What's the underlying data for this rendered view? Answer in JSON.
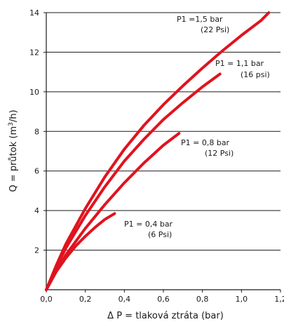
{
  "chart_data": {
    "type": "line",
    "xlim": [
      0,
      1.2
    ],
    "ylim": [
      0,
      14
    ],
    "grid": "horizontal",
    "x_tick_labels": [
      "0,0",
      "0,2",
      "0,4",
      "0,6",
      "0,8",
      "1,0",
      "1,2"
    ],
    "y_tick_labels": [
      "2",
      "4",
      "6",
      "8",
      "10",
      "12",
      "14"
    ],
    "xlabel": "Δ P = tlaková ztráta (bar)",
    "ylabel": {
      "prefix": "Q = průtok (m",
      "sup": "3",
      "suffix": "/h)"
    },
    "line_color": "#e0131e",
    "series": [
      {
        "name": "P1 = 0,4 bar (6 Psi)",
        "line1": "P1 = 0,4 bar",
        "line2": "(6 Psi)",
        "x": [
          0,
          0.05,
          0.1,
          0.15,
          0.2,
          0.25,
          0.3,
          0.35
        ],
        "y": [
          0,
          0.9,
          1.6,
          2.2,
          2.7,
          3.15,
          3.55,
          3.85
        ]
      },
      {
        "name": "P1 = 0,8 bar (12 Psi)",
        "line1": "P1 = 0,8 bar",
        "line2": "(12 Psi)",
        "x": [
          0,
          0.05,
          0.1,
          0.2,
          0.3,
          0.4,
          0.5,
          0.6,
          0.68
        ],
        "y": [
          0,
          0.9,
          1.75,
          3.1,
          4.3,
          5.4,
          6.4,
          7.3,
          7.9
        ]
      },
      {
        "name": "P1 = 1,1 bar (16 psi)",
        "line1": "P1 = 1,1 bar",
        "line2": "(16 psi)",
        "x": [
          0,
          0.05,
          0.1,
          0.2,
          0.3,
          0.4,
          0.5,
          0.6,
          0.7,
          0.8,
          0.89
        ],
        "y": [
          0,
          1.1,
          2.1,
          3.75,
          5.2,
          6.5,
          7.6,
          8.6,
          9.45,
          10.25,
          10.9
        ]
      },
      {
        "name": "P1 =1,5 bar (22 Psi)",
        "line1": "P1 =1,5 bar",
        "line2": "(22 Psi)",
        "x": [
          0,
          0.05,
          0.1,
          0.2,
          0.3,
          0.4,
          0.5,
          0.6,
          0.7,
          0.8,
          0.9,
          1.0,
          1.1,
          1.14
        ],
        "y": [
          0,
          1.2,
          2.3,
          4.1,
          5.7,
          7.1,
          8.3,
          9.35,
          10.3,
          11.2,
          12.05,
          12.85,
          13.6,
          14.0
        ]
      }
    ]
  }
}
